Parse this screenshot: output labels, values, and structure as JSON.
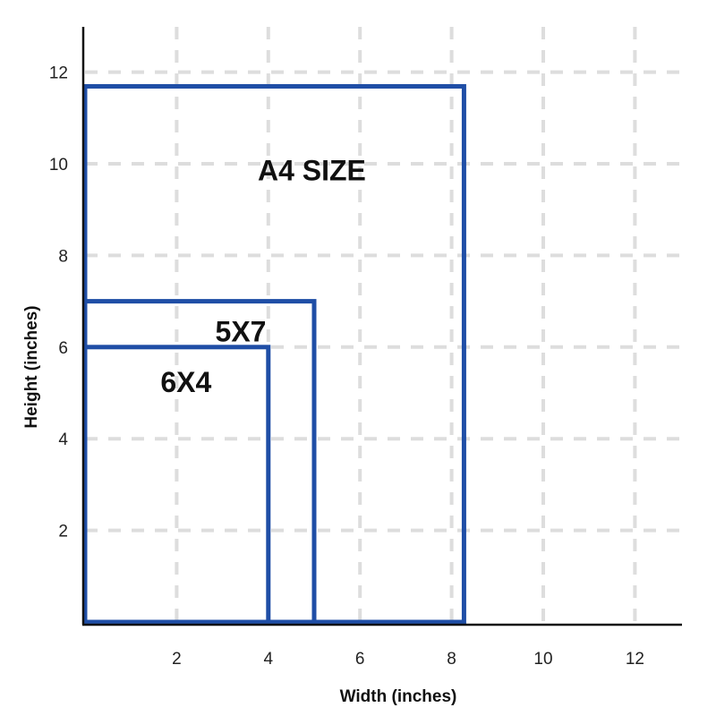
{
  "chart_data": {
    "type": "rectangles",
    "xlabel": "Width (inches)",
    "ylabel": "Height (inches)",
    "xlim": [
      0,
      13
    ],
    "ylim": [
      0,
      13
    ],
    "x_ticks": [
      2,
      4,
      6,
      8,
      10,
      12
    ],
    "y_ticks": [
      2,
      4,
      6,
      8,
      10,
      12
    ],
    "grid": "dashed",
    "colors": {
      "rect_stroke": "#1f4ea6",
      "grid": "#dddddd",
      "axis": "#111111"
    },
    "rectangles": [
      {
        "label": "A4 SIZE",
        "width": 8.27,
        "height": 11.69
      },
      {
        "label": "5X7",
        "width": 5,
        "height": 7
      },
      {
        "label": "6X4",
        "width": 4,
        "height": 6
      }
    ]
  }
}
